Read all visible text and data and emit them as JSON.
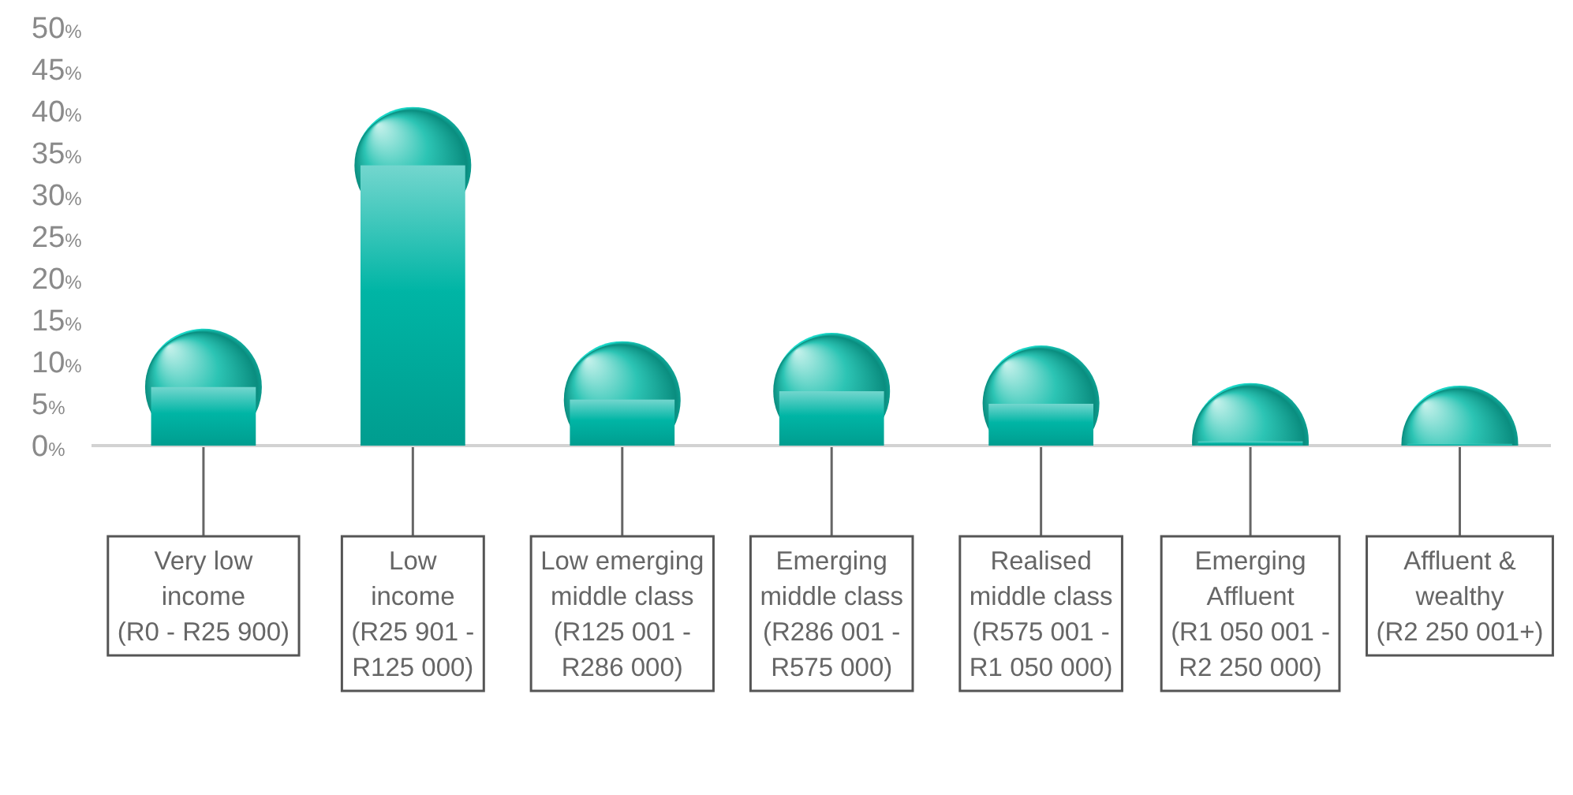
{
  "chart_data": {
    "type": "bar",
    "categories": [
      "Very low\nincome\n(R0 - R25 900)",
      "Low\nincome\n(R25 901 -\nR125 000)",
      "Low emerging\nmiddle class\n(R125 001 -\nR286 000)",
      "Emerging\nmiddle class\n(R286 001 -\nR575 000)",
      "Realised\nmiddle class\n(R575 001 -\nR1 050 000)",
      "Emerging\nAffluent\n(R1 050 001 -\nR2 250 000)",
      "Affluent &\nwealthy\n(R2 250 001+)"
    ],
    "values": [
      7,
      33.5,
      5.5,
      6.5,
      5,
      0.5,
      0.2
    ],
    "color": "#00b5a5",
    "ylim": [
      0,
      50
    ],
    "yticks": [
      {
        "value": 0,
        "label": "0%"
      },
      {
        "value": 5,
        "label": "5%"
      },
      {
        "value": 10,
        "label": "10%"
      },
      {
        "value": 15,
        "label": "15%"
      },
      {
        "value": 20,
        "label": "20%"
      },
      {
        "value": 25,
        "label": "25%"
      },
      {
        "value": 30,
        "label": "30%"
      },
      {
        "value": 35,
        "label": "35%"
      },
      {
        "value": 40,
        "label": "40%"
      },
      {
        "value": 45,
        "label": "45%"
      },
      {
        "value": 50,
        "label": "50%"
      }
    ]
  }
}
